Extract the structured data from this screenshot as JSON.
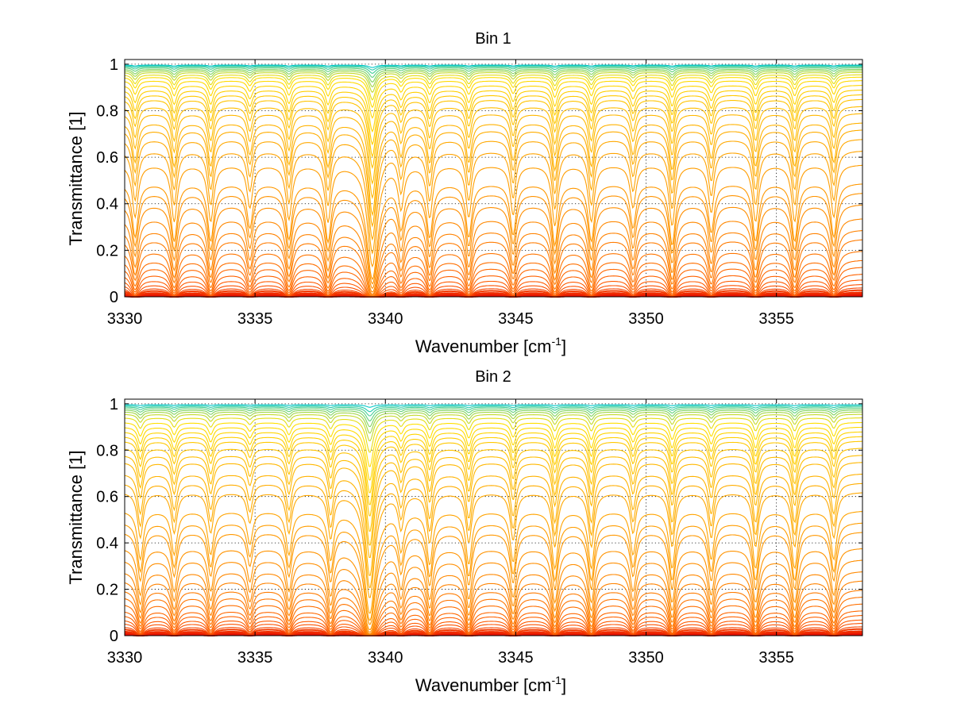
{
  "figure": {
    "colors": {
      "background": "#ffffff",
      "axes": "#000000",
      "grid": "#000000"
    }
  },
  "chart_data": [
    {
      "type": "line",
      "title": "Bin 1",
      "xlabel": "Wavenumber [cm",
      "xlabel_superscript": "-1",
      "xlabel_suffix": "]",
      "ylabel": "Transmittance [1]",
      "xlim": [
        3330,
        3358.3
      ],
      "ylim": [
        0,
        1.02
      ],
      "x_ticks": [
        3330,
        3335,
        3340,
        3345,
        3350,
        3355
      ],
      "x_tick_labels": [
        "3330",
        "3335",
        "3340",
        "3345",
        "3350",
        "3355"
      ],
      "y_ticks": [
        0,
        0.2,
        0.4,
        0.6,
        0.8,
        1
      ],
      "y_tick_labels": [
        "0",
        "0.2",
        "0.4",
        "0.6",
        "0.8",
        "1"
      ],
      "grid": true,
      "legend": "none",
      "series_count": 40,
      "color_scale": [
        "#e00000",
        "#ff5a00",
        "#ff8c00",
        "#ffb400",
        "#ffe000",
        "#00c8c8"
      ],
      "continuum_levels": [
        0.003,
        0.006,
        0.01,
        0.015,
        0.02,
        0.03,
        0.04,
        0.055,
        0.075,
        0.1,
        0.13,
        0.16,
        0.2,
        0.25,
        0.29,
        0.34,
        0.4,
        0.45,
        0.49,
        0.57,
        0.63,
        0.68,
        0.72,
        0.75,
        0.79,
        0.82,
        0.85,
        0.87,
        0.89,
        0.91,
        0.93,
        0.945,
        0.955,
        0.965,
        0.972,
        0.978,
        0.984,
        0.989,
        0.993,
        0.996
      ],
      "absorption_lines": [
        {
          "x": 3330.4,
          "depth": 0.9,
          "width": 0.12
        },
        {
          "x": 3331.9,
          "depth": 1.0,
          "width": 0.12
        },
        {
          "x": 3333.3,
          "depth": 1.0,
          "width": 0.12
        },
        {
          "x": 3334.8,
          "depth": 0.7,
          "width": 0.12
        },
        {
          "x": 3336.3,
          "depth": 0.95,
          "width": 0.12
        },
        {
          "x": 3337.8,
          "depth": 1.0,
          "width": 0.12
        },
        {
          "x": 3339.5,
          "depth": 2.6,
          "width": 0.16
        },
        {
          "x": 3340.6,
          "depth": 0.7,
          "width": 0.12
        },
        {
          "x": 3341.7,
          "depth": 0.9,
          "width": 0.12
        },
        {
          "x": 3343.2,
          "depth": 0.9,
          "width": 0.12
        },
        {
          "x": 3344.9,
          "depth": 0.85,
          "width": 0.12
        },
        {
          "x": 3346.5,
          "depth": 1.1,
          "width": 0.12
        },
        {
          "x": 3347.9,
          "depth": 1.0,
          "width": 0.12
        },
        {
          "x": 3349.5,
          "depth": 0.7,
          "width": 0.12
        },
        {
          "x": 3351.0,
          "depth": 1.1,
          "width": 0.12
        },
        {
          "x": 3352.5,
          "depth": 0.8,
          "width": 0.12
        },
        {
          "x": 3354.2,
          "depth": 1.0,
          "width": 0.12
        },
        {
          "x": 3355.7,
          "depth": 1.0,
          "width": 0.12
        },
        {
          "x": 3357.2,
          "depth": 0.9,
          "width": 0.12
        }
      ]
    },
    {
      "type": "line",
      "title": "Bin 2",
      "xlabel": "Wavenumber [cm",
      "xlabel_superscript": "-1",
      "xlabel_suffix": "]",
      "ylabel": "Transmittance [1]",
      "xlim": [
        3330,
        3358.3
      ],
      "ylim": [
        0,
        1.02
      ],
      "x_ticks": [
        3330,
        3335,
        3340,
        3345,
        3350,
        3355
      ],
      "x_tick_labels": [
        "3330",
        "3335",
        "3340",
        "3345",
        "3350",
        "3355"
      ],
      "y_ticks": [
        0,
        0.2,
        0.4,
        0.6,
        0.8,
        1
      ],
      "y_tick_labels": [
        "0",
        "0.2",
        "0.4",
        "0.6",
        "0.8",
        "1"
      ],
      "grid": true,
      "legend": "none",
      "series_count": 40,
      "color_scale": [
        "#e00000",
        "#ff5a00",
        "#ff8c00",
        "#ffb400",
        "#ffe000",
        "#00c8c8"
      ],
      "continuum_levels": [
        0.003,
        0.006,
        0.01,
        0.015,
        0.02,
        0.03,
        0.04,
        0.055,
        0.07,
        0.09,
        0.11,
        0.14,
        0.17,
        0.2,
        0.24,
        0.28,
        0.33,
        0.38,
        0.45,
        0.49,
        0.54,
        0.62,
        0.66,
        0.7,
        0.75,
        0.78,
        0.81,
        0.84,
        0.86,
        0.88,
        0.9,
        0.92,
        0.94,
        0.955,
        0.965,
        0.973,
        0.98,
        0.986,
        0.991,
        0.996
      ],
      "absorption_lines": [
        {
          "x": 3330.6,
          "depth": 0.8,
          "width": 0.12
        },
        {
          "x": 3331.9,
          "depth": 0.7,
          "width": 0.12
        },
        {
          "x": 3333.3,
          "depth": 0.7,
          "width": 0.12
        },
        {
          "x": 3334.8,
          "depth": 0.5,
          "width": 0.12
        },
        {
          "x": 3336.3,
          "depth": 0.7,
          "width": 0.12
        },
        {
          "x": 3337.9,
          "depth": 0.8,
          "width": 0.12
        },
        {
          "x": 3339.4,
          "depth": 2.8,
          "width": 0.17
        },
        {
          "x": 3340.6,
          "depth": 0.6,
          "width": 0.12
        },
        {
          "x": 3341.7,
          "depth": 0.9,
          "width": 0.12
        },
        {
          "x": 3343.2,
          "depth": 0.9,
          "width": 0.12
        },
        {
          "x": 3344.9,
          "depth": 0.85,
          "width": 0.12
        },
        {
          "x": 3346.5,
          "depth": 1.0,
          "width": 0.12
        },
        {
          "x": 3347.9,
          "depth": 1.0,
          "width": 0.12
        },
        {
          "x": 3349.5,
          "depth": 0.7,
          "width": 0.12
        },
        {
          "x": 3351.0,
          "depth": 1.0,
          "width": 0.12
        },
        {
          "x": 3352.5,
          "depth": 0.8,
          "width": 0.12
        },
        {
          "x": 3354.2,
          "depth": 1.0,
          "width": 0.12
        },
        {
          "x": 3355.7,
          "depth": 1.0,
          "width": 0.12
        },
        {
          "x": 3357.2,
          "depth": 0.8,
          "width": 0.12
        }
      ]
    }
  ]
}
